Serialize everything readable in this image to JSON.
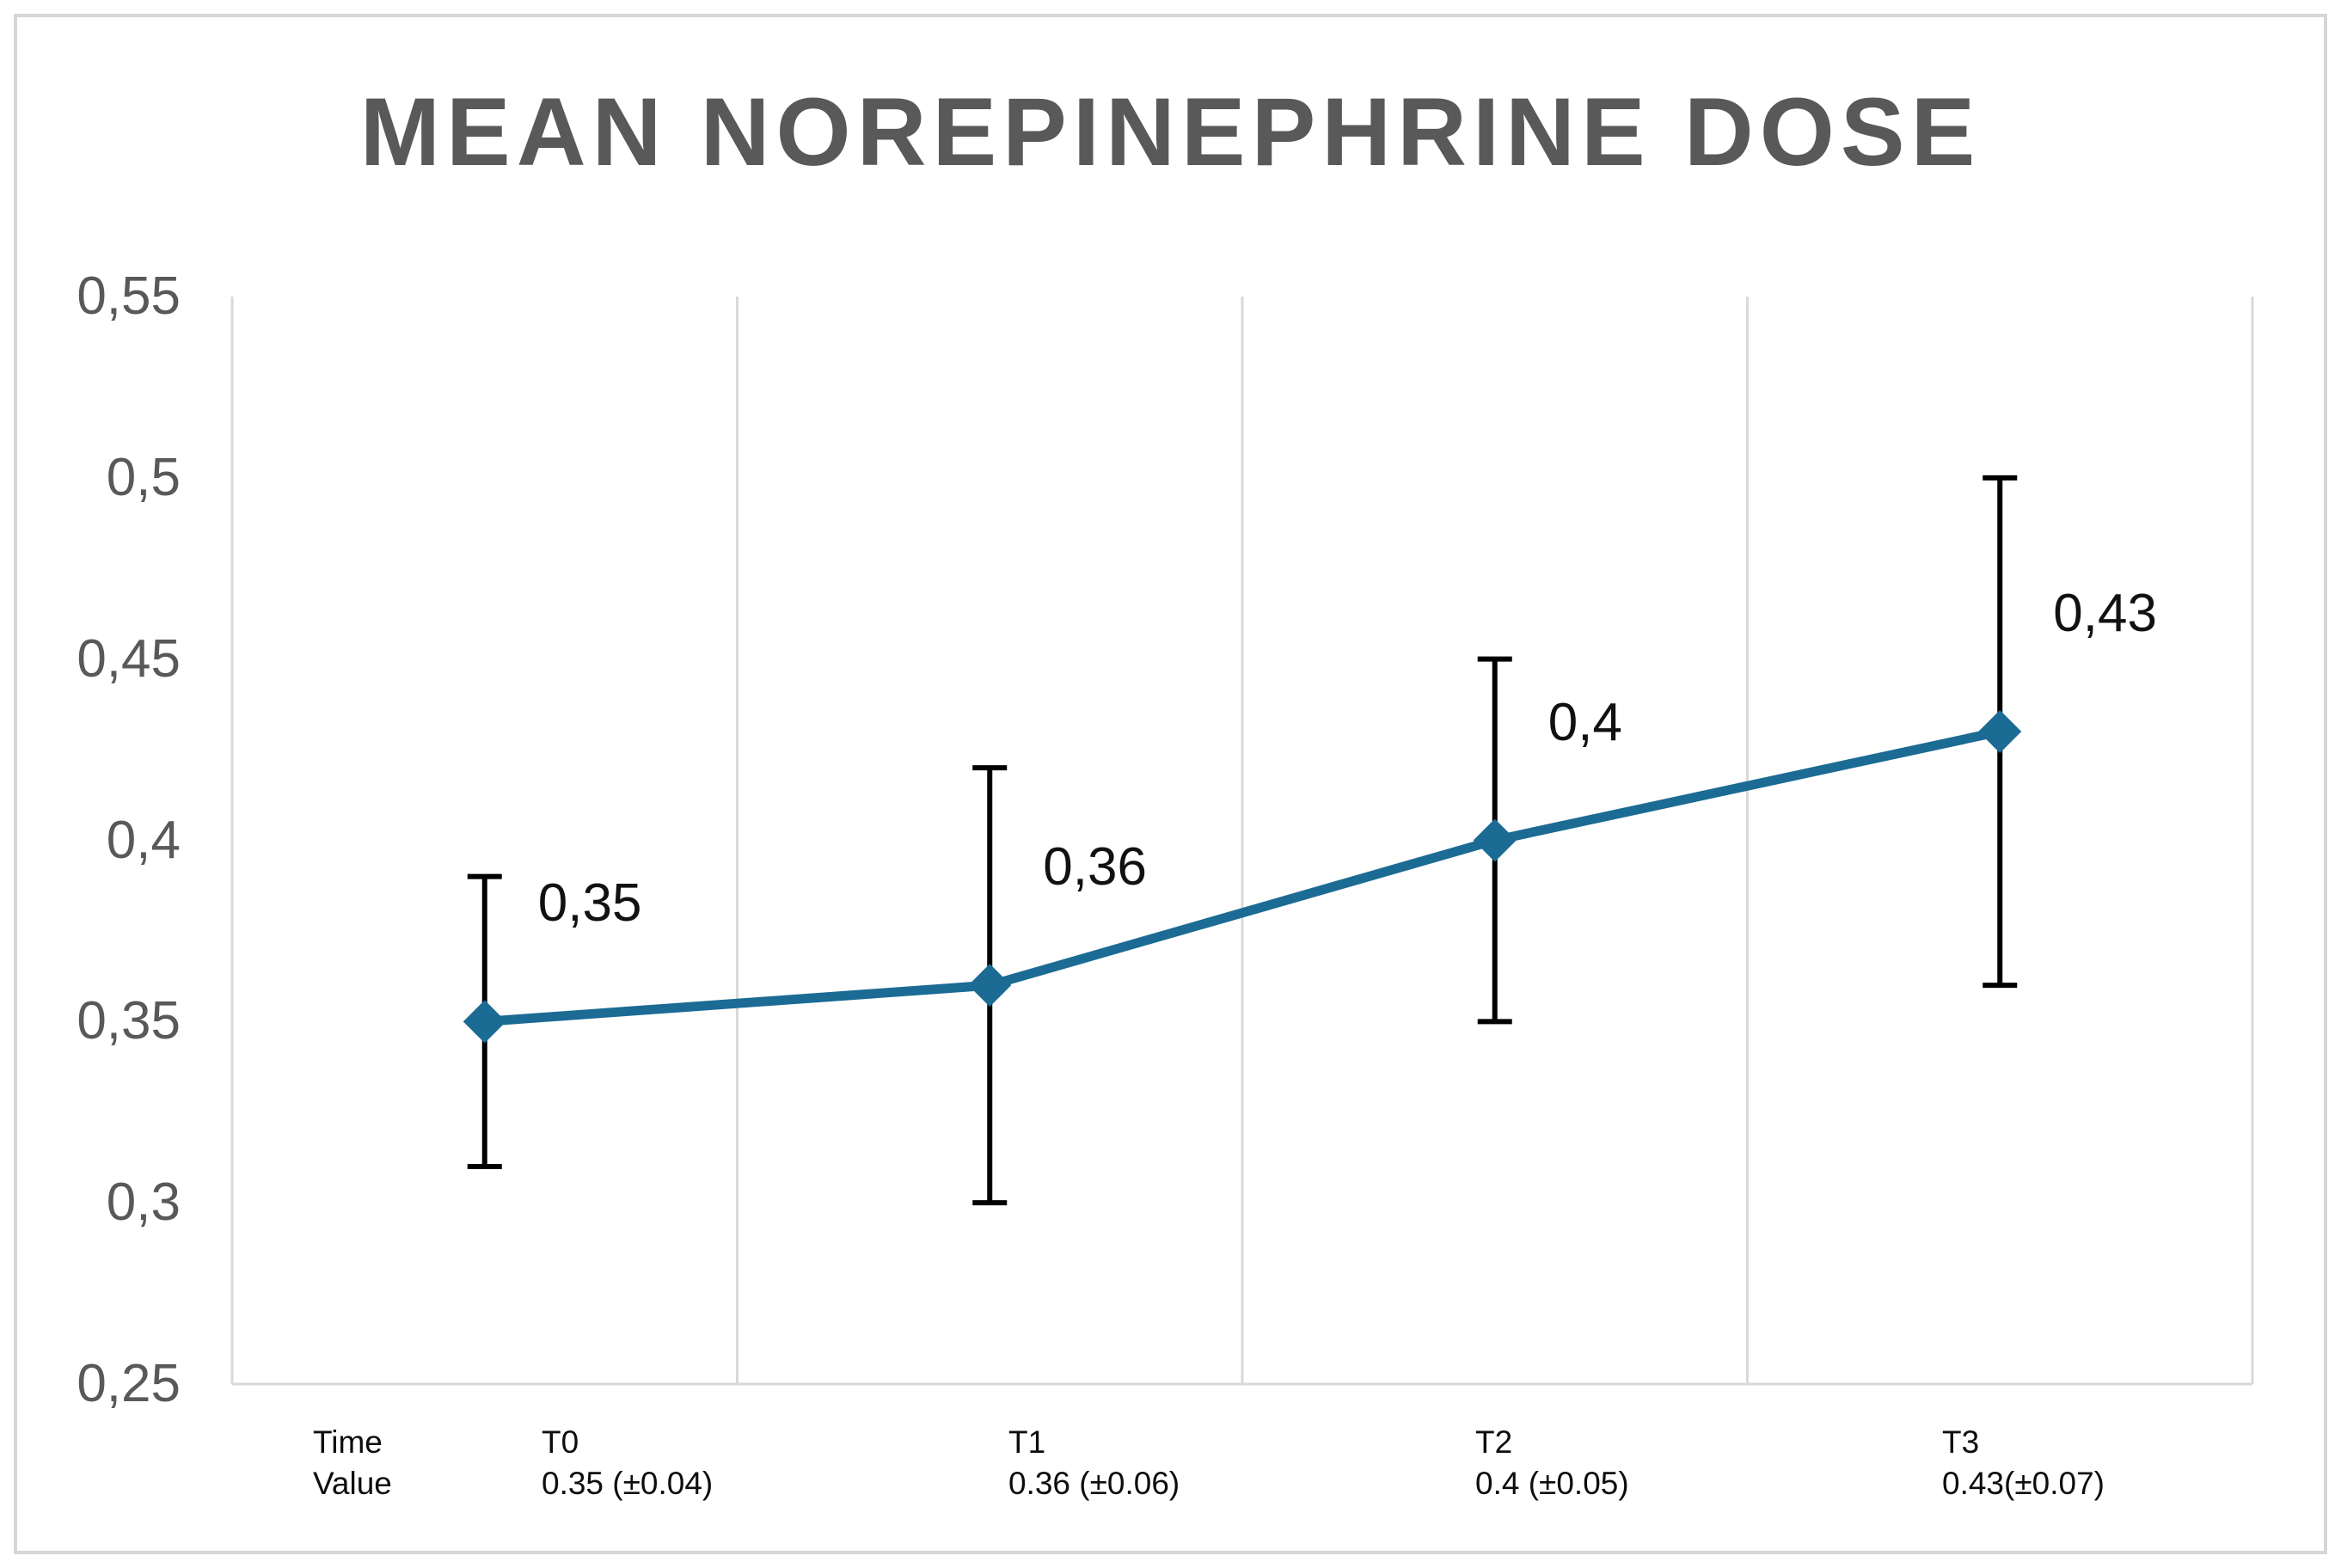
{
  "chart_data": {
    "type": "line",
    "title": "MEAN NOREPINEPHRINE DOSE",
    "categories": [
      "T0",
      "T1",
      "T2",
      "T3"
    ],
    "series": [
      {
        "name": "Mean norepinephrine dose",
        "values": [
          0.35,
          0.36,
          0.4,
          0.43
        ],
        "errors": [
          0.04,
          0.06,
          0.05,
          0.07
        ]
      }
    ],
    "point_labels": [
      "0,35",
      "0,36",
      "0,4",
      "0,43"
    ],
    "y_ticks": [
      {
        "value": 0.55,
        "label": "0,55"
      },
      {
        "value": 0.5,
        "label": "0,5"
      },
      {
        "value": 0.45,
        "label": "0,45"
      },
      {
        "value": 0.4,
        "label": "0,4"
      },
      {
        "value": 0.35,
        "label": "0,35"
      },
      {
        "value": 0.3,
        "label": "0,3"
      },
      {
        "value": 0.25,
        "label": "0,25"
      }
    ],
    "ylim": [
      0.25,
      0.55
    ],
    "xlabel": "",
    "ylabel": "",
    "grid": "vertical-only",
    "legend": "none",
    "x_table": {
      "row_headers": [
        "Time",
        "Value"
      ],
      "rows": [
        [
          "T0",
          "T1",
          "T2",
          "T3"
        ],
        [
          "0.35 (±0.04)",
          "0.36 (±0.06)",
          "0.4 (±0.05)",
          "0.43(±0.07)"
        ]
      ]
    },
    "colors": {
      "line": "#1B6B94",
      "marker": "#1B6B94",
      "error_bar": "#000000",
      "grid": "#D9D9D9",
      "title": "#595959",
      "tick_label": "#595959",
      "data_label": "#111111",
      "border": "#D6D6D6",
      "background": "#FFFFFF"
    }
  }
}
